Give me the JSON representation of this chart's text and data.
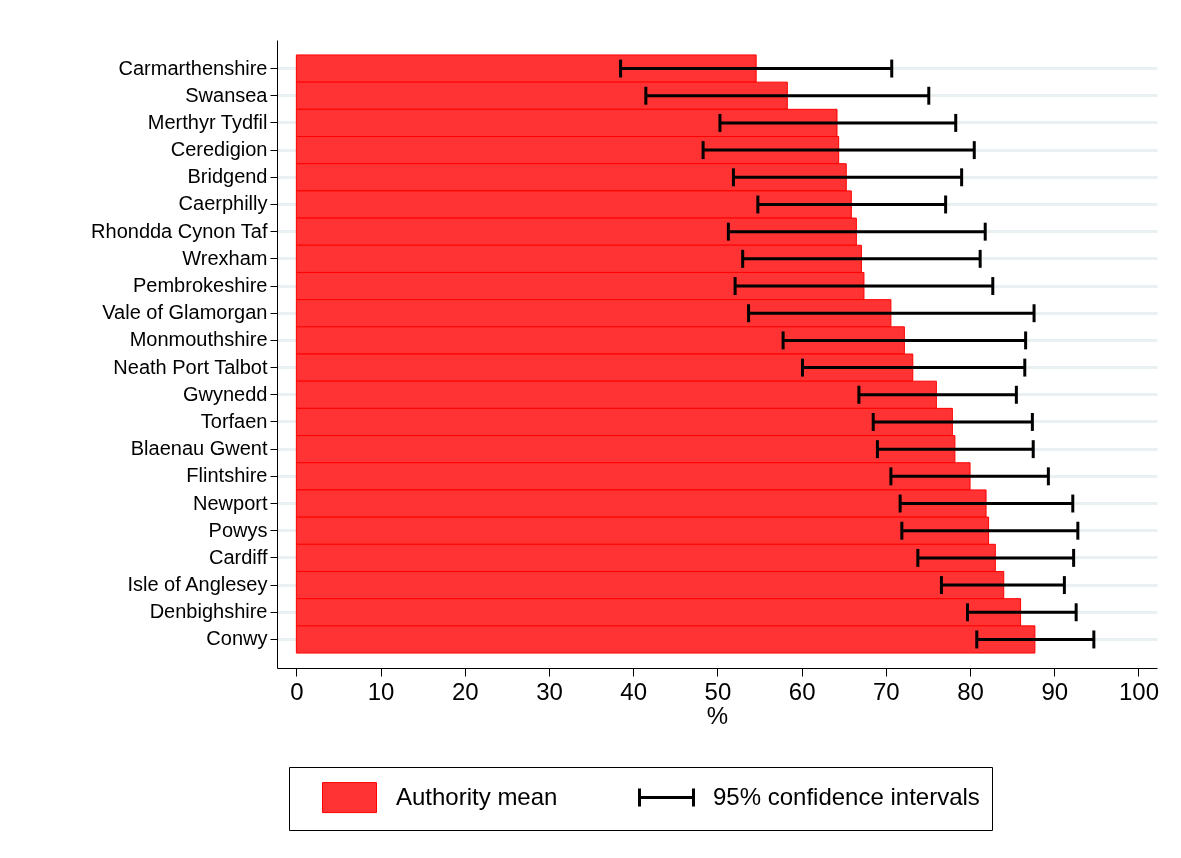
{
  "chart_data": {
    "type": "bar",
    "orientation": "horizontal",
    "xlabel": "%",
    "categories": [
      "Carmarthenshire",
      "Swansea",
      "Merthyr Tydfil",
      "Ceredigion",
      "Bridgend",
      "Caerphilly",
      "Rhondda Cynon Taf",
      "Wrexham",
      "Pembrokeshire",
      "Vale of Glamorgan",
      "Monmouthshire",
      "Neath Port Talbot",
      "Gwynedd",
      "Torfaen",
      "Blaenau Gwent",
      "Flintshire",
      "Newport",
      "Powys",
      "Cardiff",
      "Isle of Anglesey",
      "Denbighshire",
      "Conwy"
    ],
    "series": [
      {
        "name": "Authority mean",
        "color": "#ff3333",
        "values": [
          54.6,
          58.3,
          64.2,
          64.4,
          65.3,
          65.9,
          66.5,
          67.1,
          67.4,
          70.6,
          72.2,
          73.2,
          76.0,
          77.9,
          78.2,
          80.0,
          81.9,
          82.2,
          83.0,
          84.0,
          86.0,
          87.7
        ],
        "errors": [
          [
            38.5,
            70.7
          ],
          [
            41.5,
            75.1
          ],
          [
            50.3,
            78.3
          ],
          [
            48.3,
            80.5
          ],
          [
            51.9,
            79.0
          ],
          [
            54.8,
            77.1
          ],
          [
            51.3,
            81.8
          ],
          [
            53.0,
            81.2
          ],
          [
            52.1,
            82.7
          ],
          [
            53.7,
            87.6
          ],
          [
            57.8,
            86.6
          ],
          [
            60.1,
            86.5
          ],
          [
            66.8,
            85.5
          ],
          [
            68.5,
            87.4
          ],
          [
            69.0,
            87.5
          ],
          [
            70.6,
            89.3
          ],
          [
            71.7,
            92.2
          ],
          [
            71.9,
            92.8
          ],
          [
            73.8,
            92.3
          ],
          [
            76.6,
            91.2
          ],
          [
            79.7,
            92.6
          ],
          [
            80.8,
            94.7
          ]
        ]
      }
    ],
    "annotations": [
      "95% confidence intervals"
    ],
    "xlim": [
      -2.3,
      102.2
    ],
    "xticks": [
      0,
      10,
      20,
      30,
      40,
      50,
      60,
      70,
      80,
      90,
      100
    ],
    "grid": "y",
    "legend": "bottom"
  }
}
